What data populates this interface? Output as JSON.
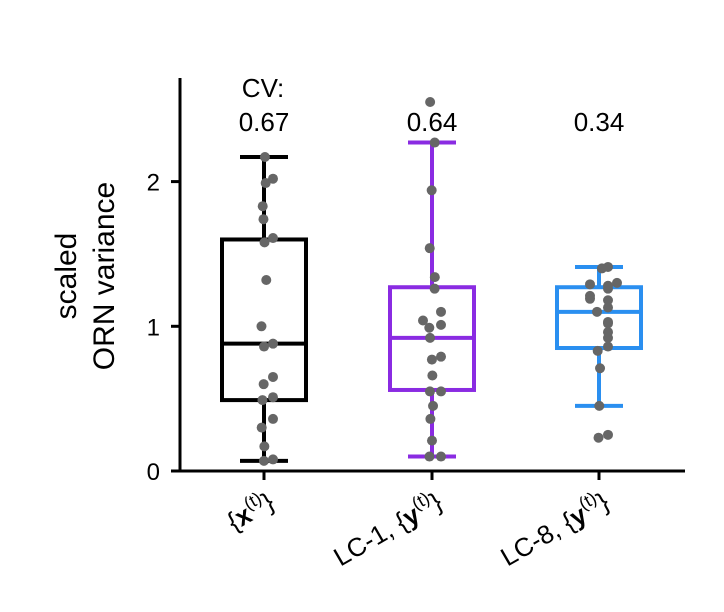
{
  "chart_data": {
    "type": "box",
    "ylabel": [
      "scaled",
      "ORN variance"
    ],
    "ylim": [
      0,
      2.7
    ],
    "yticks": [
      0,
      1,
      2
    ],
    "cv_header": "CV:",
    "groups": [
      {
        "label": "{x(t)}",
        "cv": "0.67",
        "color": "#000000",
        "whisker_low": 0.07,
        "q1": 0.49,
        "median": 0.88,
        "q3": 1.6,
        "whisker_high": 2.17,
        "points": [
          2.17,
          2.02,
          1.99,
          1.83,
          1.74,
          1.61,
          1.58,
          1.32,
          1.0,
          0.88,
          0.86,
          0.65,
          0.6,
          0.51,
          0.49,
          0.36,
          0.3,
          0.17,
          0.08,
          0.07
        ]
      },
      {
        "label": "LC-1, {y(t)}",
        "cv": "0.64",
        "color": "#8a2be2",
        "whisker_low": 0.1,
        "q1": 0.56,
        "median": 0.92,
        "q3": 1.27,
        "whisker_high": 2.27,
        "points": [
          2.55,
          2.27,
          1.94,
          1.54,
          1.34,
          1.26,
          1.1,
          1.04,
          1.01,
          0.99,
          0.92,
          0.79,
          0.77,
          0.66,
          0.55,
          0.55,
          0.45,
          0.36,
          0.21,
          0.1,
          0.1
        ]
      },
      {
        "label": "LC-8, {y(t)}",
        "cv": "0.34",
        "color": "#2a8ff0",
        "whisker_low": 0.45,
        "q1": 0.85,
        "median": 1.1,
        "q3": 1.27,
        "whisker_high": 1.41,
        "points": [
          1.41,
          1.4,
          1.3,
          1.29,
          1.28,
          1.26,
          1.21,
          1.19,
          1.18,
          1.13,
          1.1,
          1.03,
          1.02,
          0.96,
          0.92,
          0.86,
          0.83,
          0.71,
          0.45,
          0.25,
          0.23
        ]
      }
    ],
    "point_color": "#666666"
  }
}
